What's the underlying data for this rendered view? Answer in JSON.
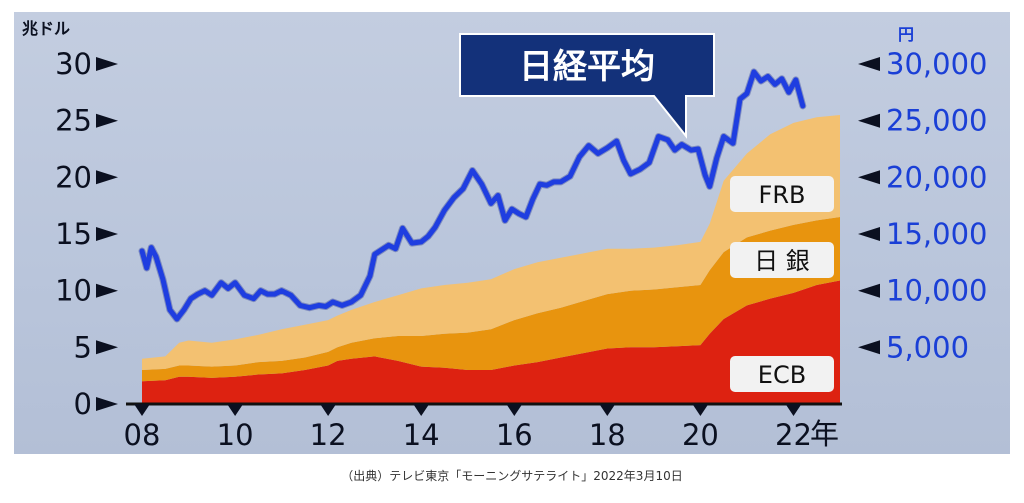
{
  "chart_data": {
    "type": "area",
    "title": "日経平均",
    "left_unit": "兆ドル",
    "right_unit": "円",
    "x_suffix": "年",
    "x_ticks": [
      8,
      10,
      12,
      14,
      16,
      18,
      20,
      22
    ],
    "x_tick_labels": [
      "08",
      "10",
      "12",
      "14",
      "16",
      "18",
      "20",
      "22"
    ],
    "x_range": [
      8,
      23
    ],
    "y_left_range": [
      0,
      30
    ],
    "y_left_ticks": [
      "0",
      "5",
      "10",
      "15",
      "20",
      "25",
      "30"
    ],
    "y_right_range": [
      0,
      30000
    ],
    "y_right_ticks": [
      "5,000",
      "10,000",
      "15,000",
      "20,000",
      "25,000",
      "30,000"
    ],
    "stacked_series": [
      {
        "name": "ECB",
        "color": "#dd2211",
        "x": [
          8.0,
          8.5,
          8.8,
          9.0,
          9.5,
          10.0,
          10.5,
          11.0,
          11.5,
          12.0,
          12.2,
          12.5,
          13.0,
          13.5,
          14.0,
          14.5,
          15.0,
          15.5,
          16.0,
          16.5,
          17.0,
          17.5,
          18.0,
          18.5,
          19.0,
          19.5,
          20.0,
          20.2,
          20.5,
          21.0,
          21.5,
          22.0,
          22.5,
          23.0
        ],
        "values": [
          2.0,
          2.1,
          2.4,
          2.4,
          2.3,
          2.4,
          2.6,
          2.7,
          3.0,
          3.4,
          3.8,
          4.0,
          4.2,
          3.8,
          3.3,
          3.2,
          3.0,
          3.0,
          3.4,
          3.7,
          4.1,
          4.5,
          4.9,
          5.0,
          5.0,
          5.1,
          5.2,
          6.2,
          7.5,
          8.7,
          9.3,
          9.8,
          10.5,
          10.9
        ]
      },
      {
        "name": "日銀",
        "color": "#e8940e",
        "x": [
          8.0,
          8.5,
          8.8,
          9.0,
          9.5,
          10.0,
          10.5,
          11.0,
          11.5,
          12.0,
          12.2,
          12.5,
          13.0,
          13.5,
          14.0,
          14.5,
          15.0,
          15.5,
          16.0,
          16.5,
          17.0,
          17.5,
          18.0,
          18.5,
          19.0,
          19.5,
          20.0,
          20.2,
          20.5,
          21.0,
          21.5,
          22.0,
          22.5,
          23.0
        ],
        "values": [
          1.0,
          1.0,
          1.0,
          1.0,
          1.0,
          1.0,
          1.1,
          1.1,
          1.1,
          1.2,
          1.2,
          1.4,
          1.6,
          2.2,
          2.7,
          3.0,
          3.3,
          3.6,
          4.0,
          4.3,
          4.4,
          4.6,
          4.8,
          5.0,
          5.1,
          5.2,
          5.3,
          5.6,
          5.9,
          6.0,
          6.0,
          6.0,
          5.7,
          5.6
        ]
      },
      {
        "name": "FRB",
        "color": "#f3c171",
        "x": [
          8.0,
          8.5,
          8.8,
          9.0,
          9.5,
          10.0,
          10.5,
          11.0,
          11.5,
          12.0,
          12.2,
          12.5,
          13.0,
          13.5,
          14.0,
          14.5,
          15.0,
          15.5,
          16.0,
          16.5,
          17.0,
          17.5,
          18.0,
          18.5,
          19.0,
          19.5,
          20.0,
          20.2,
          20.5,
          21.0,
          21.5,
          22.0,
          22.5,
          23.0
        ],
        "values": [
          1.0,
          1.1,
          2.0,
          2.2,
          2.1,
          2.3,
          2.4,
          2.8,
          2.9,
          2.8,
          2.8,
          2.9,
          3.2,
          3.6,
          4.2,
          4.3,
          4.4,
          4.4,
          4.5,
          4.5,
          4.4,
          4.2,
          4.0,
          3.7,
          3.7,
          3.7,
          3.8,
          4.1,
          6.3,
          7.4,
          8.5,
          9.0,
          9.1,
          9.0
        ]
      }
    ],
    "line_series": {
      "name": "日経平均",
      "color": "#1f3ee0",
      "x": [
        8.0,
        8.1,
        8.2,
        8.3,
        8.45,
        8.6,
        8.75,
        8.9,
        9.05,
        9.2,
        9.35,
        9.5,
        9.7,
        9.85,
        10.0,
        10.2,
        10.4,
        10.55,
        10.7,
        10.85,
        11.0,
        11.2,
        11.4,
        11.6,
        11.8,
        11.95,
        12.1,
        12.3,
        12.5,
        12.7,
        12.9,
        13.0,
        13.15,
        13.3,
        13.45,
        13.6,
        13.8,
        14.0,
        14.15,
        14.3,
        14.5,
        14.7,
        14.9,
        15.1,
        15.3,
        15.5,
        15.65,
        15.8,
        15.95,
        16.1,
        16.25,
        16.4,
        16.55,
        16.7,
        16.85,
        17.0,
        17.2,
        17.4,
        17.6,
        17.8,
        18.0,
        18.2,
        18.35,
        18.5,
        18.7,
        18.9,
        19.1,
        19.3,
        19.45,
        19.6,
        19.8,
        19.95,
        20.1,
        20.2,
        20.35,
        20.5,
        20.7,
        20.85,
        21.0,
        21.15,
        21.3,
        21.45,
        21.6,
        21.75,
        21.9,
        22.05,
        22.2
      ],
      "values": [
        13500,
        12000,
        13800,
        13000,
        11000,
        8300,
        7500,
        8300,
        9300,
        9700,
        10000,
        9600,
        10700,
        10200,
        10700,
        9600,
        9300,
        10000,
        9700,
        9700,
        10000,
        9600,
        8700,
        8500,
        8700,
        8600,
        9000,
        8700,
        9000,
        9600,
        11300,
        13200,
        13600,
        14000,
        13700,
        15500,
        14200,
        14300,
        14800,
        15600,
        17100,
        18200,
        19000,
        20600,
        19400,
        17700,
        18400,
        16200,
        17200,
        16800,
        16500,
        18100,
        19400,
        19300,
        19600,
        19600,
        20100,
        21800,
        22800,
        22100,
        22600,
        23200,
        21500,
        20300,
        20700,
        21300,
        23600,
        23300,
        22400,
        22900,
        22400,
        22500,
        20200,
        19200,
        21700,
        23600,
        23000,
        26900,
        27400,
        29300,
        28500,
        28900,
        28200,
        28700,
        27500,
        28600,
        26300
      ]
    },
    "legend_labels": [
      "FRB",
      "日 銀",
      "ECB"
    ]
  },
  "caption": "（出典）テレビ東京「モーニングサテライト」2022年3月10日"
}
